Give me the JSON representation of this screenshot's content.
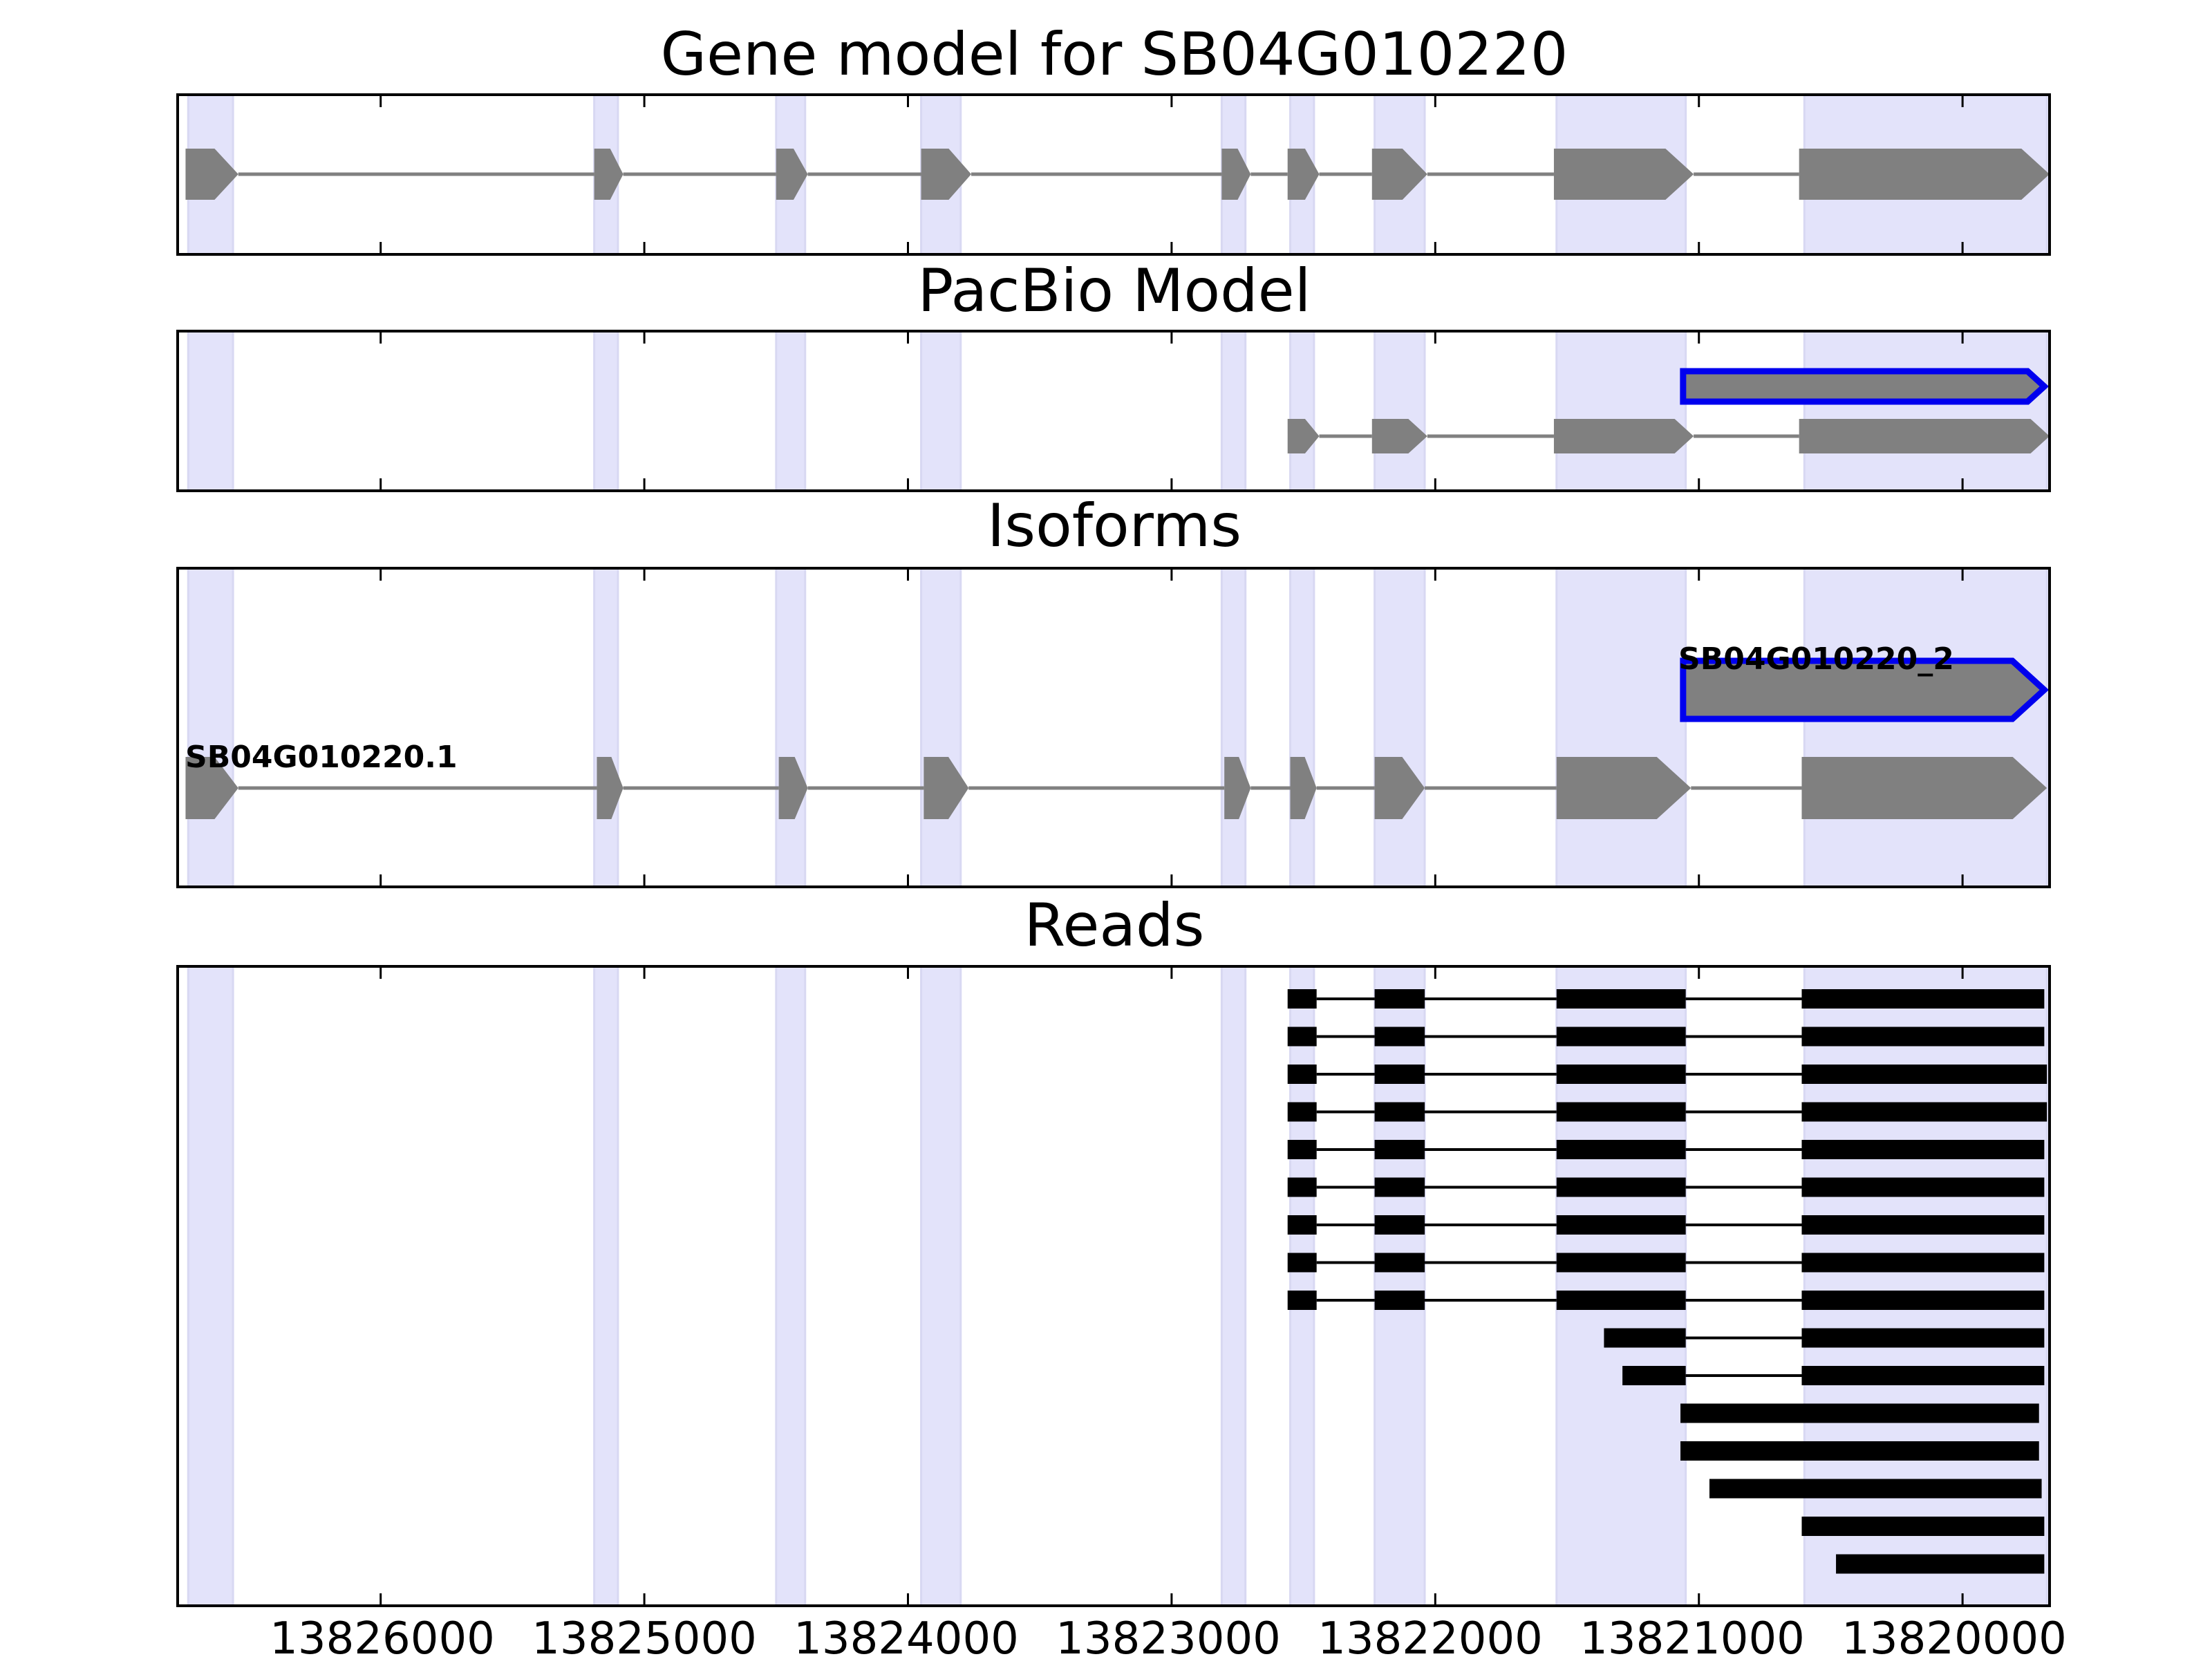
{
  "chart_data": {
    "type": "gene-track",
    "gene_id": "SB04G010220",
    "x_axis": {
      "inverted": true,
      "range": [
        13826770,
        13819670
      ],
      "ticks": [
        13826000,
        13825000,
        13824000,
        13823000,
        13822000,
        13821000,
        13820000
      ],
      "tick_labels": [
        "13826000",
        "13825000",
        "13824000",
        "13823000",
        "13822000",
        "13821000",
        "13820000"
      ]
    },
    "highlight_color": "#e3e3fa",
    "highlight_regions": [
      [
        13826730,
        13826560
      ],
      [
        13825190,
        13825100
      ],
      [
        13824500,
        13824390
      ],
      [
        13823950,
        13823800
      ],
      [
        13822810,
        13822720
      ],
      [
        13822550,
        13822460
      ],
      [
        13822230,
        13822040
      ],
      [
        13821540,
        13821050
      ],
      [
        13820600,
        13819680
      ]
    ],
    "panels": {
      "gene_model": {
        "title": "Gene model for SB04G010220",
        "transcripts": [
          {
            "exons": [
              [
                13826740,
                13826540
              ],
              [
                13825190,
                13825080
              ],
              [
                13824500,
                13824380
              ],
              [
                13823950,
                13823760
              ],
              [
                13822810,
                13822700
              ],
              [
                13822560,
                13822440
              ],
              [
                13822240,
                13822030
              ],
              [
                13821550,
                13821020
              ],
              [
                13820620,
                13819670
              ]
            ]
          }
        ]
      },
      "pacbio_model": {
        "title": "PacBio Model",
        "transcripts": [
          {
            "highlight": true,
            "exons": [
              [
                13821060,
                13819690
              ]
            ]
          },
          {
            "exons": [
              [
                13822560,
                13822440
              ],
              [
                13822240,
                13822030
              ],
              [
                13821550,
                13821020
              ],
              [
                13820620,
                13819670
              ]
            ]
          }
        ]
      },
      "isoforms": {
        "title": "Isoforms",
        "transcripts": [
          {
            "label": "SB04G010220_2",
            "highlight": true,
            "exons": [
              [
                13821060,
                13819690
              ]
            ]
          },
          {
            "label": "SB04G010220.1",
            "exons": [
              [
                13826740,
                13826540
              ],
              [
                13825180,
                13825080
              ],
              [
                13824490,
                13824380
              ],
              [
                13823940,
                13823770
              ],
              [
                13822800,
                13822700
              ],
              [
                13822550,
                13822450
              ],
              [
                13822230,
                13822040
              ],
              [
                13821540,
                13821030
              ],
              [
                13820610,
                13819680
              ]
            ]
          }
        ]
      },
      "reads": {
        "title": "Reads",
        "reads": [
          [
            [
              13822560,
              13822450
            ],
            [
              13822230,
              13822040
            ],
            [
              13821540,
              13821050
            ],
            [
              13820610,
              13819690
            ]
          ],
          [
            [
              13822560,
              13822450
            ],
            [
              13822230,
              13822040
            ],
            [
              13821540,
              13821050
            ],
            [
              13820610,
              13819690
            ]
          ],
          [
            [
              13822560,
              13822450
            ],
            [
              13822230,
              13822040
            ],
            [
              13821540,
              13821050
            ],
            [
              13820610,
              13819680
            ]
          ],
          [
            [
              13822560,
              13822450
            ],
            [
              13822230,
              13822040
            ],
            [
              13821540,
              13821050
            ],
            [
              13820610,
              13819680
            ]
          ],
          [
            [
              13822560,
              13822450
            ],
            [
              13822230,
              13822040
            ],
            [
              13821540,
              13821050
            ],
            [
              13820610,
              13819690
            ]
          ],
          [
            [
              13822560,
              13822450
            ],
            [
              13822230,
              13822040
            ],
            [
              13821540,
              13821050
            ],
            [
              13820610,
              13819690
            ]
          ],
          [
            [
              13822560,
              13822450
            ],
            [
              13822230,
              13822040
            ],
            [
              13821540,
              13821050
            ],
            [
              13820610,
              13819690
            ]
          ],
          [
            [
              13822560,
              13822450
            ],
            [
              13822230,
              13822040
            ],
            [
              13821540,
              13821050
            ],
            [
              13820610,
              13819690
            ]
          ],
          [
            [
              13822560,
              13822450
            ],
            [
              13822230,
              13822040
            ],
            [
              13821540,
              13821050
            ],
            [
              13820610,
              13819690
            ]
          ],
          [
            [
              13821360,
              13821050
            ],
            [
              13820610,
              13819690
            ]
          ],
          [
            [
              13821290,
              13821050
            ],
            [
              13820610,
              13819690
            ]
          ],
          [
            [
              13821070,
              13819710
            ]
          ],
          [
            [
              13821070,
              13819710
            ]
          ],
          [
            [
              13820960,
              13819700
            ]
          ],
          [
            [
              13820610,
              13819690
            ]
          ],
          [
            [
              13820480,
              13819690
            ]
          ]
        ]
      }
    },
    "colors": {
      "exon": "#808080",
      "intron": "#808080",
      "read": "#000000",
      "highlight_outline": "#0000ee",
      "frame": "#000000"
    }
  }
}
